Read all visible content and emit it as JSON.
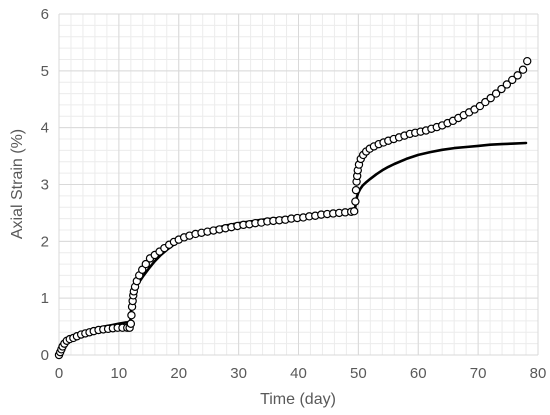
{
  "chart_data": {
    "type": "scatter",
    "xlabel": "Time (day)",
    "ylabel": "Axial Strain (%)",
    "xlim": [
      0,
      80
    ],
    "ylim": [
      0,
      6
    ],
    "x_ticks": [
      "0",
      "10",
      "20",
      "30",
      "40",
      "50",
      "60",
      "70",
      "80"
    ],
    "y_ticks": [
      "0",
      "1",
      "2",
      "3",
      "4",
      "5",
      "6"
    ],
    "grid": true,
    "legend": "none",
    "colors": {
      "markers": "#000000",
      "line": "#000000",
      "grid": "#d9d9d9",
      "text": "#595959"
    },
    "series": [
      {
        "kind": "markers",
        "style": "open-circle",
        "x": [
          0.0,
          0.2,
          0.4,
          0.6,
          0.9,
          1.3,
          1.8,
          2.4,
          3.0,
          3.7,
          4.4,
          5.1,
          5.8,
          6.6,
          7.4,
          8.2,
          9.0,
          9.8,
          10.6,
          11.4,
          11.8,
          12.0,
          12.1,
          12.2,
          12.3,
          12.4,
          12.5,
          12.7,
          13.0,
          13.4,
          13.9,
          14.5,
          15.2,
          16.0,
          16.8,
          17.6,
          18.4,
          19.2,
          20.0,
          20.9,
          21.8,
          22.8,
          23.8,
          24.8,
          25.8,
          26.8,
          27.8,
          28.8,
          29.8,
          30.8,
          31.8,
          32.8,
          33.8,
          34.8,
          35.8,
          36.8,
          37.8,
          38.8,
          39.8,
          40.8,
          41.8,
          42.8,
          43.8,
          44.8,
          45.8,
          46.8,
          47.8,
          48.8,
          49.3,
          49.5,
          49.6,
          49.7,
          49.8,
          49.9,
          50.1,
          50.4,
          50.8,
          51.3,
          51.9,
          52.6,
          53.4,
          54.2,
          55.0,
          55.9,
          56.8,
          57.7,
          58.6,
          59.5,
          60.4,
          61.3,
          62.2,
          63.1,
          64.0,
          64.9,
          65.8,
          66.7,
          67.6,
          68.5,
          69.4,
          70.3,
          71.2,
          72.1,
          73.0,
          73.9,
          74.8,
          75.7,
          76.6,
          77.5,
          78.2
        ],
        "y": [
          0.0,
          0.05,
          0.1,
          0.15,
          0.2,
          0.25,
          0.28,
          0.3,
          0.33,
          0.36,
          0.38,
          0.4,
          0.42,
          0.44,
          0.45,
          0.46,
          0.47,
          0.48,
          0.48,
          0.48,
          0.48,
          0.55,
          0.7,
          0.85,
          0.95,
          1.05,
          1.12,
          1.2,
          1.3,
          1.4,
          1.5,
          1.6,
          1.7,
          1.76,
          1.82,
          1.88,
          1.94,
          1.99,
          2.03,
          2.07,
          2.1,
          2.13,
          2.15,
          2.17,
          2.19,
          2.21,
          2.23,
          2.25,
          2.27,
          2.29,
          2.3,
          2.32,
          2.33,
          2.35,
          2.36,
          2.37,
          2.38,
          2.4,
          2.41,
          2.42,
          2.44,
          2.45,
          2.47,
          2.48,
          2.49,
          2.5,
          2.51,
          2.52,
          2.53,
          2.7,
          2.9,
          3.05,
          3.15,
          3.25,
          3.35,
          3.45,
          3.52,
          3.58,
          3.63,
          3.67,
          3.71,
          3.74,
          3.77,
          3.8,
          3.83,
          3.86,
          3.89,
          3.91,
          3.93,
          3.95,
          3.98,
          4.01,
          4.04,
          4.08,
          4.12,
          4.17,
          4.22,
          4.27,
          4.32,
          4.38,
          4.45,
          4.52,
          4.6,
          4.68,
          4.76,
          4.84,
          4.92,
          5.02,
          5.17
        ]
      },
      {
        "kind": "line",
        "x": [
          0,
          1,
          2,
          3,
          4,
          5,
          6,
          7,
          8,
          9,
          10,
          11,
          11.9,
          12.0,
          12.1,
          12.3,
          12.6,
          13.0,
          13.5,
          14.0,
          15,
          16,
          17,
          18,
          19,
          20,
          22,
          24,
          26,
          28,
          30,
          32,
          34,
          36,
          38,
          40,
          42,
          44,
          46,
          48,
          49.4,
          49.5,
          49.6,
          49.8,
          50.0,
          50.3,
          50.7,
          51.2,
          52,
          53,
          54,
          55,
          56,
          58,
          60,
          62,
          64,
          66,
          68,
          70,
          72,
          74,
          76,
          78
        ],
        "y": [
          0.0,
          0.18,
          0.28,
          0.34,
          0.39,
          0.43,
          0.46,
          0.49,
          0.51,
          0.53,
          0.55,
          0.57,
          0.58,
          0.7,
          0.9,
          1.05,
          1.15,
          1.22,
          1.3,
          1.38,
          1.52,
          1.65,
          1.76,
          1.85,
          1.93,
          2.0,
          2.1,
          2.17,
          2.23,
          2.28,
          2.32,
          2.35,
          2.38,
          2.4,
          2.42,
          2.44,
          2.45,
          2.47,
          2.48,
          2.49,
          2.5,
          2.62,
          2.72,
          2.8,
          2.86,
          2.92,
          2.98,
          3.03,
          3.1,
          3.18,
          3.25,
          3.31,
          3.36,
          3.45,
          3.52,
          3.57,
          3.61,
          3.64,
          3.66,
          3.68,
          3.7,
          3.71,
          3.72,
          3.73
        ]
      }
    ]
  }
}
